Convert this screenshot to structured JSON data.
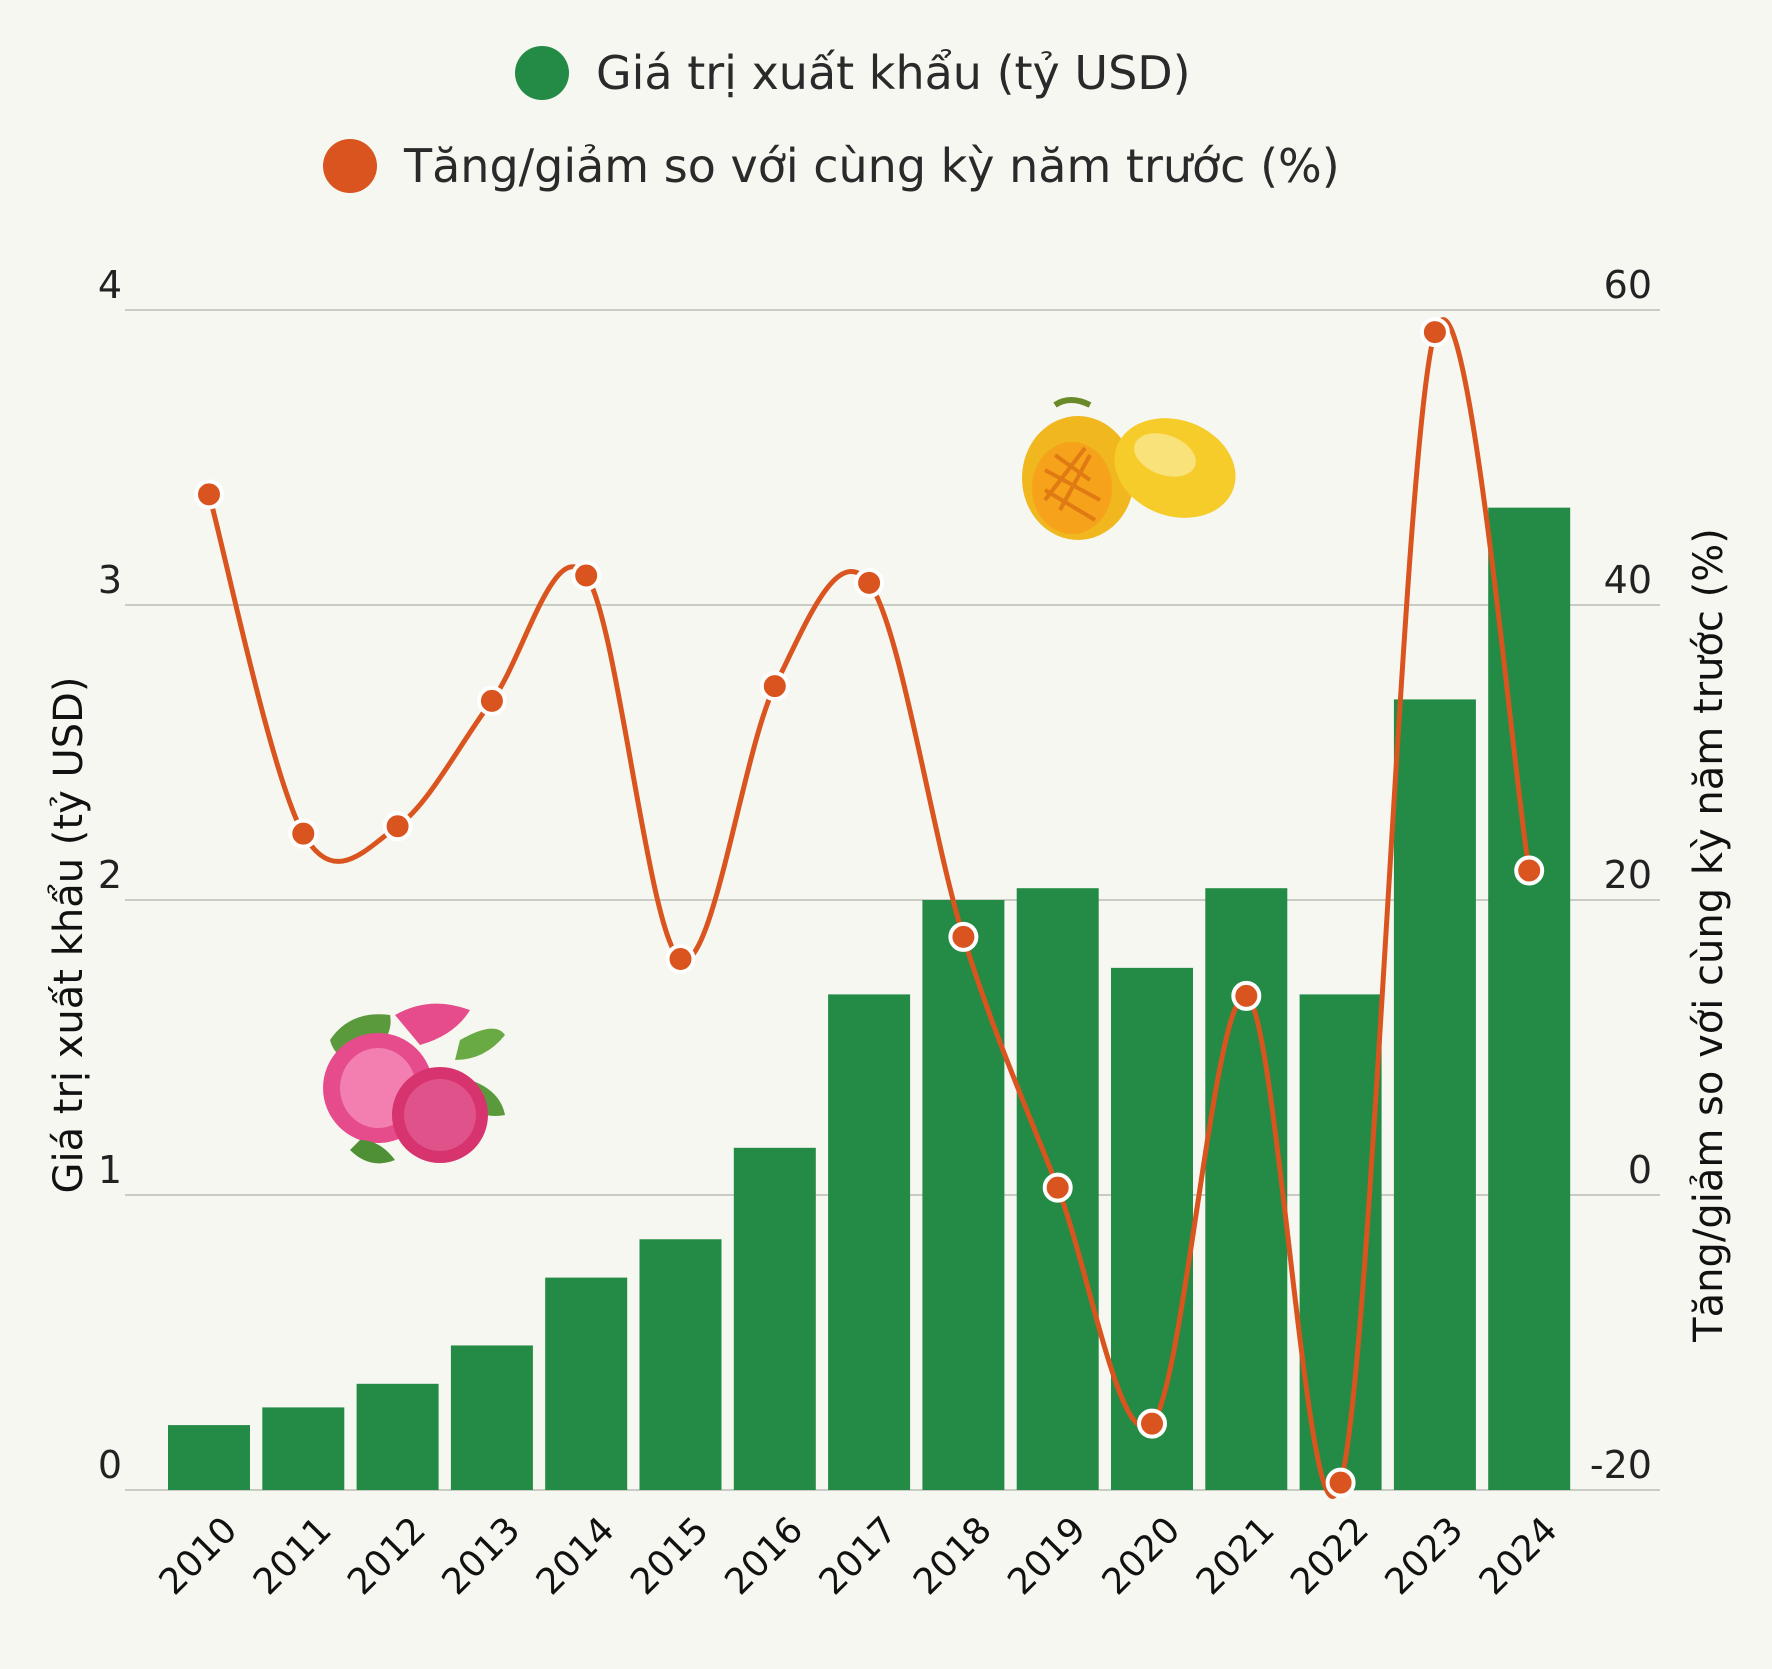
{
  "chart_data": {
    "type": "bar",
    "categories": [
      "2010",
      "2011",
      "2012",
      "2013",
      "2014",
      "2015",
      "2016",
      "2017",
      "2018",
      "2019",
      "2020",
      "2021",
      "2022",
      "2023",
      "2024"
    ],
    "series": [
      {
        "name": "Giá trị xuất khẩu (tỷ USD)",
        "kind": "bar",
        "axis": "left",
        "color": "#238b45",
        "values": [
          0.22,
          0.28,
          0.36,
          0.49,
          0.72,
          0.85,
          1.16,
          1.68,
          2.0,
          2.04,
          1.77,
          2.04,
          1.68,
          2.68,
          3.33
        ]
      },
      {
        "name": "Tăng/giảm so với cùng kỳ năm trước (%)",
        "kind": "line",
        "axis": "right",
        "color": "#d9541e",
        "values": [
          47.5,
          24.5,
          25,
          33.5,
          42,
          16,
          34.5,
          41.5,
          17.5,
          0.5,
          -15.5,
          13.5,
          -19.5,
          58.5,
          22
        ]
      }
    ],
    "ylabel": "Giá trị xuất khẩu (tỷ USD)",
    "y2label": "Tăng/giảm so với cùng kỳ năm trước (%)",
    "ylim": [
      0,
      4
    ],
    "y2lim": [
      -20,
      60
    ],
    "yticks": [
      "0",
      "1",
      "2",
      "3",
      "4"
    ],
    "y2ticks": [
      "-20",
      "0",
      "20",
      "40",
      "60"
    ],
    "grid": true,
    "legend_position": "top-center",
    "images": [
      "dragon-fruit-image",
      "mango-image"
    ]
  }
}
